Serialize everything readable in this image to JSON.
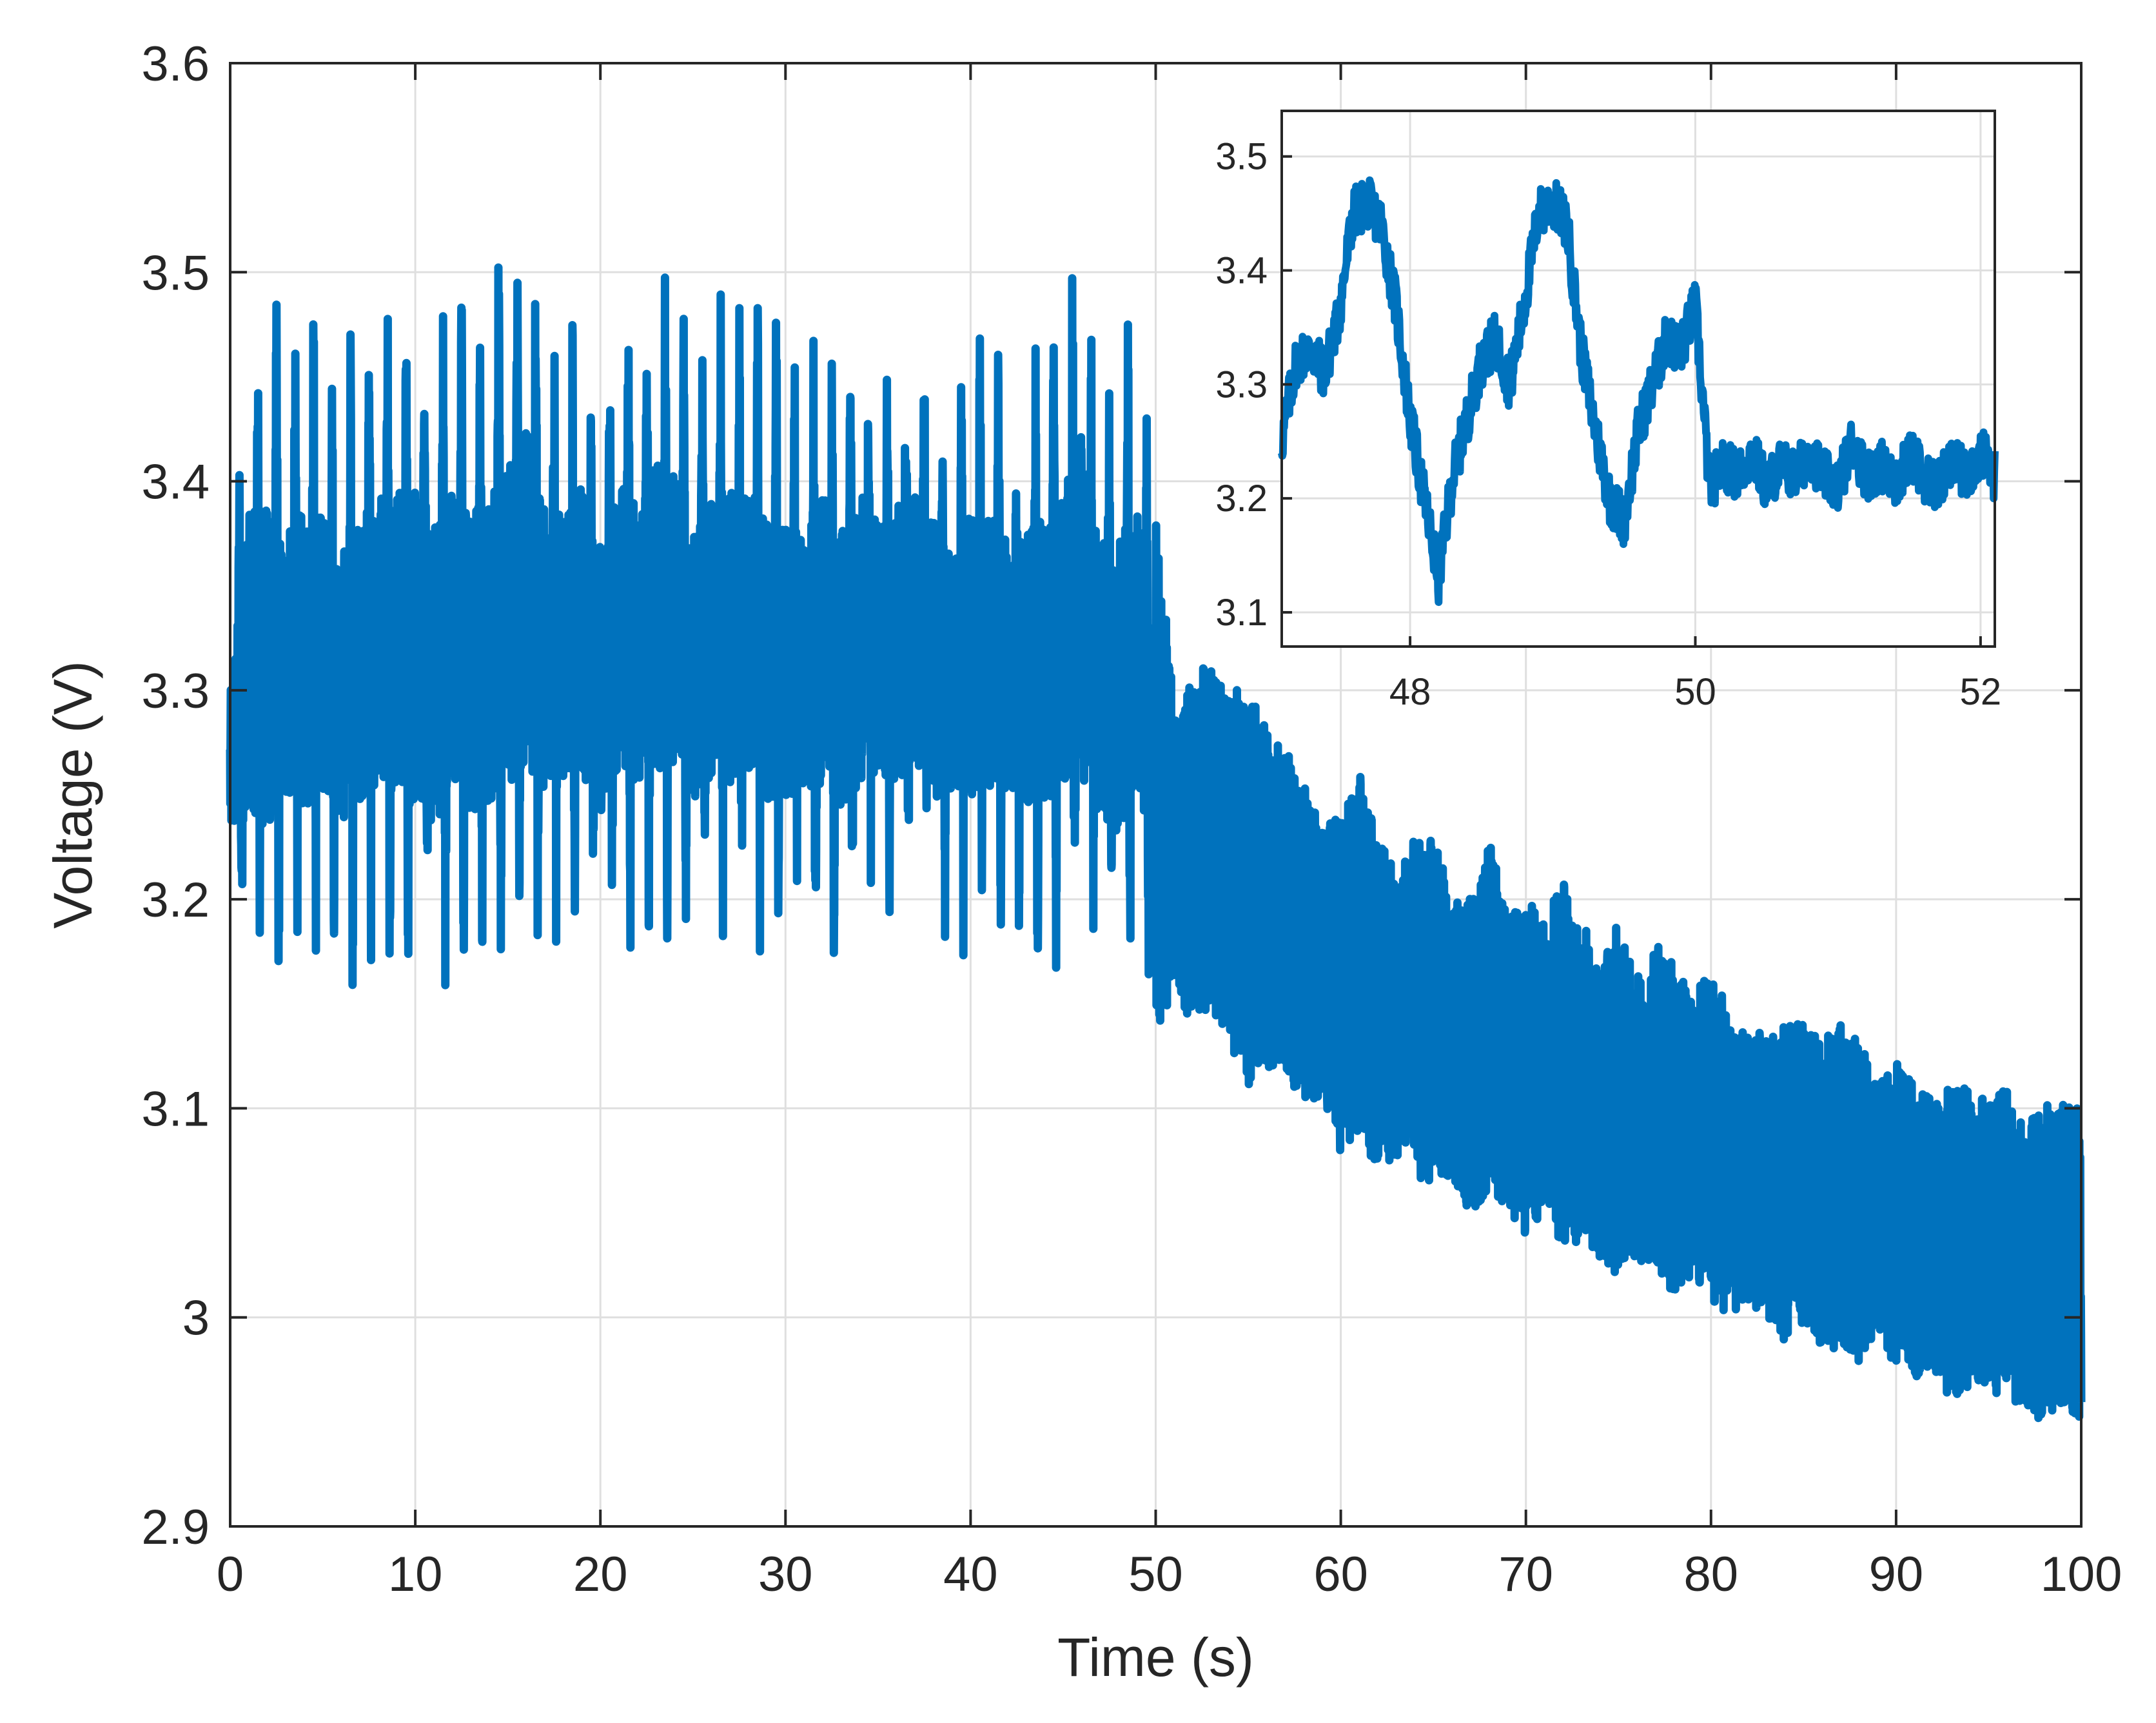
{
  "chart_data": [
    {
      "id": "main",
      "type": "line",
      "title": "",
      "xlabel": "Time (s)",
      "ylabel": "Voltage (V)",
      "xlim": [
        0,
        100
      ],
      "ylim": [
        2.9,
        3.6
      ],
      "xticks": [
        0,
        10,
        20,
        30,
        40,
        50,
        60,
        70,
        80,
        90,
        100
      ],
      "yticks": [
        2.9,
        3.0,
        3.1,
        3.2,
        3.3,
        3.4,
        3.5,
        3.6
      ],
      "xtick_labels": [
        "0",
        "10",
        "20",
        "30",
        "40",
        "50",
        "60",
        "70",
        "80",
        "90",
        "100"
      ],
      "ytick_labels": [
        "2.9",
        "3",
        "3.1",
        "3.2",
        "3.3",
        "3.4",
        "3.5",
        "3.6"
      ],
      "grid": true,
      "color": "#0072bd",
      "series": [
        {
          "x": [
            0,
            1,
            2,
            3,
            4,
            5,
            6,
            7,
            8,
            9,
            10,
            11,
            12,
            13,
            14,
            15,
            16,
            17,
            18,
            19,
            20,
            21,
            22,
            23,
            24,
            25,
            26,
            27,
            28,
            29,
            30,
            31,
            32,
            33,
            34,
            35,
            36,
            37,
            38,
            39,
            40,
            41,
            42,
            43,
            44,
            45,
            46,
            47,
            48,
            49,
            50,
            51,
            52,
            53,
            54,
            55,
            56,
            57,
            58,
            59,
            60,
            61,
            62,
            63,
            64,
            65,
            66,
            67,
            68,
            69,
            70,
            71,
            72,
            73,
            74,
            75,
            76,
            77,
            78,
            79,
            80,
            81,
            82,
            83,
            84,
            85,
            86,
            87,
            88,
            89,
            90,
            91,
            92,
            93,
            94,
            95,
            96,
            97,
            98,
            99,
            100
          ],
          "y_max": [
            3.36,
            3.5,
            3.52,
            3.48,
            3.51,
            3.5,
            3.47,
            3.5,
            3.52,
            3.52,
            3.52,
            3.51,
            3.52,
            3.51,
            3.52,
            3.53,
            3.56,
            3.5,
            3.49,
            3.52,
            3.48,
            3.51,
            3.51,
            3.53,
            3.52,
            3.48,
            3.5,
            3.51,
            3.52,
            3.5,
            3.49,
            3.47,
            3.51,
            3.49,
            3.51,
            3.49,
            3.5,
            3.51,
            3.49,
            3.46,
            3.5,
            3.5,
            3.48,
            3.48,
            3.5,
            3.51,
            3.56,
            3.48,
            3.5,
            3.51,
            3.4,
            3.3,
            3.32,
            3.32,
            3.31,
            3.31,
            3.29,
            3.28,
            3.27,
            3.24,
            3.25,
            3.27,
            3.24,
            3.22,
            3.24,
            3.24,
            3.21,
            3.21,
            3.24,
            3.2,
            3.21,
            3.2,
            3.22,
            3.2,
            3.18,
            3.2,
            3.17,
            3.19,
            3.18,
            3.16,
            3.18,
            3.15,
            3.15,
            3.14,
            3.15,
            3.15,
            3.14,
            3.15,
            3.14,
            3.12,
            3.13,
            3.12,
            3.11,
            3.12,
            3.12,
            3.11,
            3.12,
            3.1,
            3.11,
            3.11,
            3.11
          ],
          "y_min": [
            3.16,
            3.13,
            3.1,
            3.14,
            3.12,
            3.14,
            3.13,
            3.12,
            3.14,
            3.13,
            3.12,
            3.11,
            3.13,
            3.12,
            3.12,
            3.13,
            3.13,
            3.14,
            3.15,
            3.14,
            3.13,
            3.15,
            3.14,
            3.14,
            3.15,
            3.14,
            3.15,
            3.14,
            3.14,
            3.13,
            3.14,
            3.15,
            3.14,
            3.13,
            3.14,
            3.15,
            3.14,
            3.15,
            3.14,
            3.15,
            3.13,
            3.14,
            3.15,
            3.14,
            3.13,
            3.14,
            3.12,
            3.13,
            3.11,
            3.14,
            3.12,
            3.15,
            3.13,
            3.14,
            3.12,
            3.1,
            3.11,
            3.11,
            3.09,
            3.1,
            3.07,
            3.08,
            3.06,
            3.07,
            3.06,
            3.05,
            3.06,
            3.04,
            3.05,
            3.04,
            3.03,
            3.04,
            3.02,
            3.03,
            3.02,
            3.01,
            3.02,
            3.01,
            3.0,
            3.01,
            3.0,
            2.99,
            3.0,
            2.99,
            2.98,
            2.99,
            2.97,
            2.98,
            2.97,
            2.98,
            2.97,
            2.96,
            2.97,
            2.95,
            2.96,
            2.96,
            2.95,
            2.95,
            2.94,
            2.95,
            2.94
          ]
        }
      ]
    },
    {
      "id": "inset",
      "type": "line",
      "title": "",
      "xlabel": "",
      "ylabel": "",
      "xlim": [
        47.1,
        52.1
      ],
      "ylim": [
        3.07,
        3.54
      ],
      "xticks": [
        48,
        50,
        52
      ],
      "yticks": [
        3.1,
        3.2,
        3.3,
        3.4,
        3.5
      ],
      "xtick_labels": [
        "48",
        "50",
        "52"
      ],
      "ytick_labels": [
        "3.1",
        "3.2",
        "3.3",
        "3.4",
        "3.5"
      ],
      "grid": true,
      "color": "#0072bd",
      "series": [
        {
          "x": [
            47.1,
            47.2,
            47.3,
            47.4,
            47.5,
            47.6,
            47.7,
            47.8,
            47.9,
            48.0,
            48.1,
            48.2,
            48.3,
            48.4,
            48.5,
            48.6,
            48.7,
            48.8,
            48.9,
            49.0,
            49.1,
            49.2,
            49.3,
            49.4,
            49.5,
            49.6,
            49.7,
            49.8,
            49.9,
            50.0,
            50.1,
            50.2,
            50.3,
            50.4,
            50.5,
            50.6,
            50.7,
            50.8,
            50.9,
            51.0,
            51.1,
            51.2,
            51.3,
            51.4,
            51.5,
            51.6,
            51.7,
            51.8,
            51.9,
            52.0,
            52.1
          ],
          "y": [
            3.25,
            3.32,
            3.33,
            3.31,
            3.36,
            3.45,
            3.46,
            3.44,
            3.37,
            3.27,
            3.2,
            3.13,
            3.22,
            3.27,
            3.32,
            3.34,
            3.3,
            3.37,
            3.45,
            3.46,
            3.44,
            3.33,
            3.26,
            3.2,
            3.18,
            3.26,
            3.3,
            3.34,
            3.33,
            3.37,
            3.21,
            3.23,
            3.22,
            3.24,
            3.21,
            3.23,
            3.22,
            3.24,
            3.22,
            3.21,
            3.25,
            3.22,
            3.23,
            3.21,
            3.24,
            3.22,
            3.21,
            3.23,
            3.22,
            3.24,
            3.22
          ]
        }
      ]
    }
  ]
}
